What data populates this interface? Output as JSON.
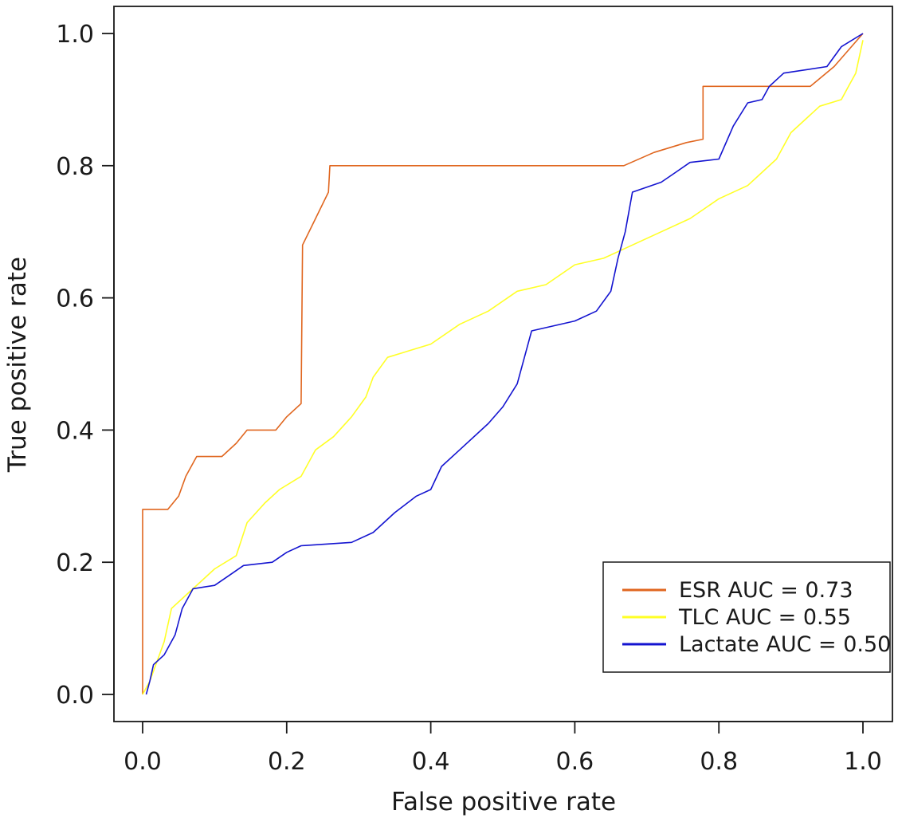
{
  "chart_data": {
    "type": "line",
    "title": "",
    "xlabel": "False positive rate",
    "ylabel": "True positive rate",
    "xlim": [
      0,
      1
    ],
    "ylim": [
      0,
      1
    ],
    "xticks": [
      "0.0",
      "0.2",
      "0.4",
      "0.6",
      "0.8",
      "1.0"
    ],
    "yticks": [
      "0.0",
      "0.2",
      "0.4",
      "0.6",
      "0.8",
      "1.0"
    ],
    "grid": false,
    "legend_position": "bottom-right",
    "series": [
      {
        "name": "ESR AUC = 0.73",
        "color": "#e0661f",
        "points": [
          [
            0,
            0
          ],
          [
            0,
            0.28
          ],
          [
            0.035,
            0.28
          ],
          [
            0.05,
            0.3
          ],
          [
            0.06,
            0.33
          ],
          [
            0.075,
            0.36
          ],
          [
            0.11,
            0.36
          ],
          [
            0.13,
            0.38
          ],
          [
            0.145,
            0.4
          ],
          [
            0.185,
            0.4
          ],
          [
            0.2,
            0.42
          ],
          [
            0.22,
            0.44
          ],
          [
            0.222,
            0.68
          ],
          [
            0.24,
            0.72
          ],
          [
            0.258,
            0.76
          ],
          [
            0.26,
            0.8
          ],
          [
            0.668,
            0.8
          ],
          [
            0.71,
            0.82
          ],
          [
            0.755,
            0.835
          ],
          [
            0.778,
            0.84
          ],
          [
            0.778,
            0.92
          ],
          [
            0.927,
            0.92
          ],
          [
            0.96,
            0.95
          ],
          [
            1.0,
            1.0
          ]
        ]
      },
      {
        "name": "TLC AUC = 0.55",
        "color": "#ffff26",
        "points": [
          [
            0,
            0
          ],
          [
            0.01,
            0.02
          ],
          [
            0.02,
            0.05
          ],
          [
            0.03,
            0.08
          ],
          [
            0.04,
            0.13
          ],
          [
            0.06,
            0.15
          ],
          [
            0.08,
            0.17
          ],
          [
            0.1,
            0.19
          ],
          [
            0.13,
            0.21
          ],
          [
            0.145,
            0.26
          ],
          [
            0.17,
            0.29
          ],
          [
            0.19,
            0.31
          ],
          [
            0.22,
            0.33
          ],
          [
            0.24,
            0.37
          ],
          [
            0.265,
            0.39
          ],
          [
            0.29,
            0.42
          ],
          [
            0.31,
            0.45
          ],
          [
            0.32,
            0.48
          ],
          [
            0.34,
            0.51
          ],
          [
            0.37,
            0.52
          ],
          [
            0.4,
            0.53
          ],
          [
            0.44,
            0.56
          ],
          [
            0.48,
            0.58
          ],
          [
            0.52,
            0.61
          ],
          [
            0.56,
            0.62
          ],
          [
            0.6,
            0.65
          ],
          [
            0.64,
            0.66
          ],
          [
            0.68,
            0.68
          ],
          [
            0.72,
            0.7
          ],
          [
            0.76,
            0.72
          ],
          [
            0.8,
            0.75
          ],
          [
            0.84,
            0.77
          ],
          [
            0.88,
            0.81
          ],
          [
            0.9,
            0.85
          ],
          [
            0.94,
            0.89
          ],
          [
            0.97,
            0.9
          ],
          [
            0.98,
            0.92
          ],
          [
            0.99,
            0.94
          ],
          [
            1.0,
            0.99
          ]
        ]
      },
      {
        "name": "Lactate AUC = 0.50",
        "color": "#1414d0",
        "points": [
          [
            0.005,
            0
          ],
          [
            0.01,
            0.02
          ],
          [
            0.015,
            0.045
          ],
          [
            0.03,
            0.06
          ],
          [
            0.045,
            0.09
          ],
          [
            0.055,
            0.13
          ],
          [
            0.07,
            0.16
          ],
          [
            0.1,
            0.165
          ],
          [
            0.12,
            0.18
          ],
          [
            0.14,
            0.195
          ],
          [
            0.18,
            0.2
          ],
          [
            0.2,
            0.215
          ],
          [
            0.22,
            0.225
          ],
          [
            0.29,
            0.23
          ],
          [
            0.32,
            0.245
          ],
          [
            0.35,
            0.275
          ],
          [
            0.38,
            0.3
          ],
          [
            0.4,
            0.31
          ],
          [
            0.415,
            0.345
          ],
          [
            0.44,
            0.37
          ],
          [
            0.48,
            0.41
          ],
          [
            0.5,
            0.435
          ],
          [
            0.52,
            0.47
          ],
          [
            0.54,
            0.55
          ],
          [
            0.6,
            0.565
          ],
          [
            0.63,
            0.58
          ],
          [
            0.65,
            0.61
          ],
          [
            0.66,
            0.66
          ],
          [
            0.67,
            0.7
          ],
          [
            0.68,
            0.76
          ],
          [
            0.72,
            0.775
          ],
          [
            0.74,
            0.79
          ],
          [
            0.76,
            0.805
          ],
          [
            0.8,
            0.81
          ],
          [
            0.82,
            0.86
          ],
          [
            0.84,
            0.895
          ],
          [
            0.86,
            0.9
          ],
          [
            0.87,
            0.92
          ],
          [
            0.89,
            0.94
          ],
          [
            0.95,
            0.95
          ],
          [
            0.97,
            0.98
          ],
          [
            1.0,
            1.0
          ]
        ]
      }
    ]
  }
}
